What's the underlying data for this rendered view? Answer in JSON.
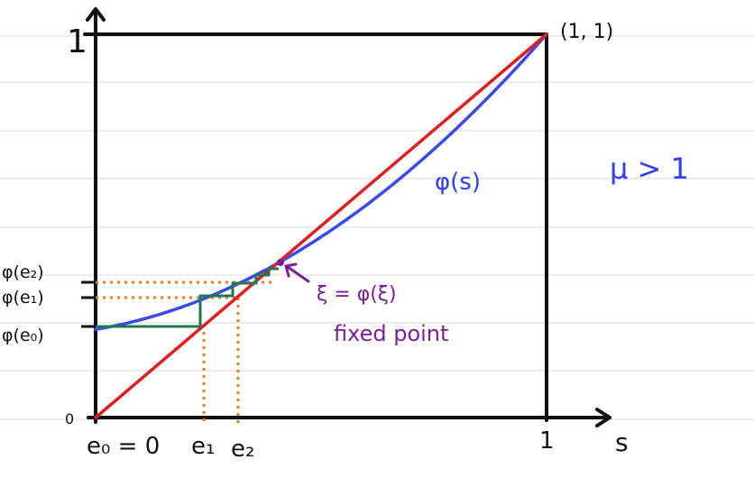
{
  "labels": {
    "y_top": "1",
    "y_origin": "0",
    "corner_point": "(1, 1)",
    "curve_label": "φ(s)",
    "condition": "μ > 1",
    "x_axis": "s",
    "x_one": "1",
    "e0": "e₀ = 0",
    "e1": "e₁",
    "e2": "e₂",
    "phi_e2": "φ(e₂)",
    "phi_e1": "φ(e₁)",
    "phi_e0": "φ(e₀)",
    "fixed_eq": "ξ = φ(ξ)",
    "fixed_text": "fixed point"
  },
  "colors": {
    "diagonal": "#e01e1e",
    "curve": "#3a4af2",
    "staircase": "#1e7a4e",
    "guides": "#f07a24",
    "annotation": "#7a2096",
    "axes": "#111111",
    "ruled_lines": "#d9d9d9"
  },
  "values": {
    "phi_at_zero": 0.23,
    "e1": 0.23,
    "e2": 0.303,
    "phi_e1": 0.303,
    "phi_e2": 0.343,
    "fixed_point": 0.4
  }
}
